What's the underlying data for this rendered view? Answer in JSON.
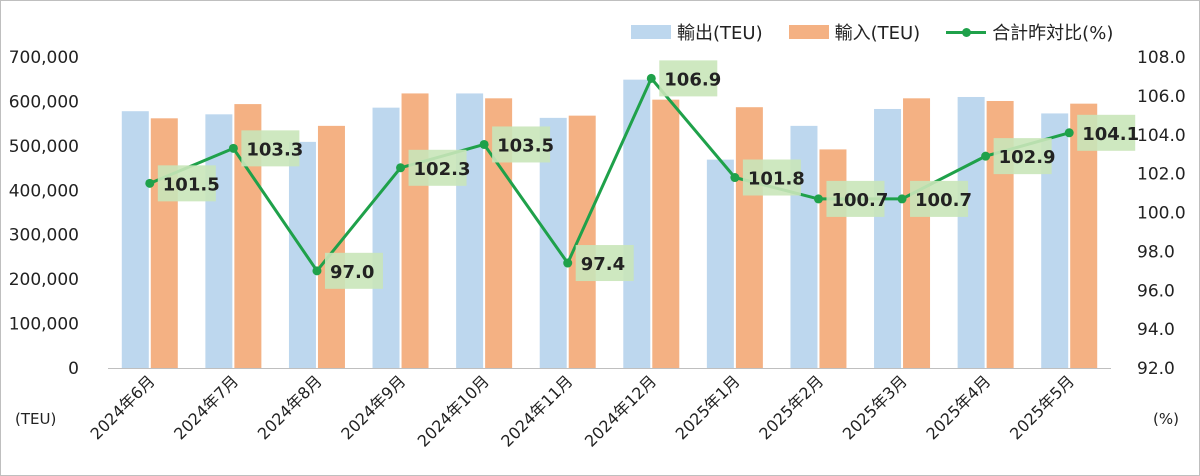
{
  "chart_data": {
    "type": "bar",
    "categories": [
      "2024年6月",
      "2024年7月",
      "2024年8月",
      "2024年9月",
      "2024年10月",
      "2024年11月",
      "2024年12月",
      "2025年1月",
      "2025年2月",
      "2025年3月",
      "2025年4月",
      "2025年5月"
    ],
    "series": [
      {
        "name": "輸出(TEU)",
        "type": "bar",
        "axis": "left",
        "color": "#bdd7ee",
        "values": [
          578000,
          571000,
          509000,
          586000,
          618000,
          563000,
          649000,
          469000,
          545000,
          583000,
          610000,
          573000
        ]
      },
      {
        "name": "輸入(TEU)",
        "type": "bar",
        "axis": "left",
        "color": "#f4b183",
        "values": [
          562000,
          594000,
          545000,
          618000,
          607000,
          568000,
          604000,
          587000,
          492000,
          607000,
          601000,
          595000
        ]
      },
      {
        "name": "合計昨対比(%)",
        "type": "line",
        "axis": "right",
        "color": "#1fa14a",
        "values": [
          101.5,
          103.3,
          97.0,
          102.3,
          103.5,
          97.4,
          106.9,
          101.8,
          100.7,
          100.7,
          102.9,
          104.1
        ],
        "labels": [
          "101.5",
          "103.3",
          "97.0",
          "102.3",
          "103.5",
          "97.4",
          "106.9",
          "101.8",
          "100.7",
          "100.7",
          "102.9",
          "104.1"
        ]
      }
    ],
    "y_left": {
      "unit": "(TEU)",
      "ylim": [
        0,
        700000
      ],
      "ticks": [
        0,
        100000,
        200000,
        300000,
        400000,
        500000,
        600000,
        700000
      ],
      "tick_labels": [
        "0",
        "100,000",
        "200,000",
        "300,000",
        "400,000",
        "500,000",
        "600,000",
        "700,000"
      ]
    },
    "y_right": {
      "unit": "(%)",
      "ylim": [
        92.0,
        108.0
      ],
      "ticks": [
        92,
        94,
        96,
        98,
        100,
        102,
        104,
        106,
        108
      ],
      "tick_labels": [
        "92.0",
        "94.0",
        "96.0",
        "98.0",
        "100.0",
        "102.0",
        "104.0",
        "106.0",
        "108.0"
      ]
    },
    "grid": false,
    "legend_position": "top-right",
    "data_label_bg": "#c9e6b9"
  }
}
